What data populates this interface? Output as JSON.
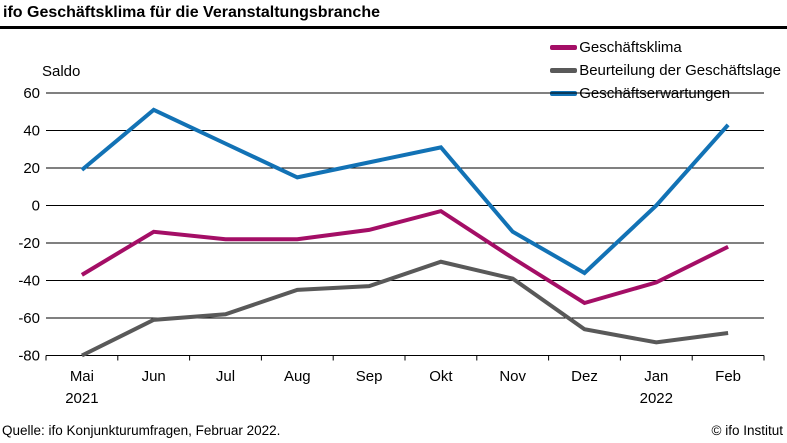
{
  "title": "ifo Geschäftsklima für die Veranstaltungsbranche",
  "y_axis_label": "Saldo",
  "footer": {
    "source": "Quelle: ifo Konjunkturumfragen, Februar 2022.",
    "copyright": "© ifo Institut"
  },
  "colors": {
    "klima": "#a40e66",
    "lage": "#595959",
    "erwartungen": "#1272b5",
    "axis": "#000000"
  },
  "chart_data": {
    "type": "line",
    "title": "ifo Geschäftsklima für die Veranstaltungsbranche",
    "ylabel": "Saldo",
    "ylim": [
      -80,
      60
    ],
    "ytick_step": 20,
    "grid": true,
    "legend_position": "top-right",
    "categories": [
      "Mai",
      "Jun",
      "Jul",
      "Aug",
      "Sep",
      "Okt",
      "Nov",
      "Dez",
      "Jan",
      "Feb"
    ],
    "year_labels": [
      {
        "index": 0,
        "label": "2021"
      },
      {
        "index": 8,
        "label": "2022"
      }
    ],
    "series": [
      {
        "name": "Geschäftsklima",
        "color": "#a40e66",
        "values": [
          -37,
          -14,
          -18,
          -18,
          -13,
          -3,
          -28,
          -52,
          -41,
          -22
        ]
      },
      {
        "name": "Beurteilung der Geschäftslage",
        "color": "#595959",
        "values": [
          -80,
          -61,
          -58,
          -45,
          -43,
          -30,
          -39,
          -66,
          -73,
          -68
        ]
      },
      {
        "name": "Geschäftserwartungen",
        "color": "#1272b5",
        "values": [
          19,
          51,
          33,
          15,
          23,
          31,
          -14,
          -36,
          0,
          43
        ]
      }
    ]
  }
}
